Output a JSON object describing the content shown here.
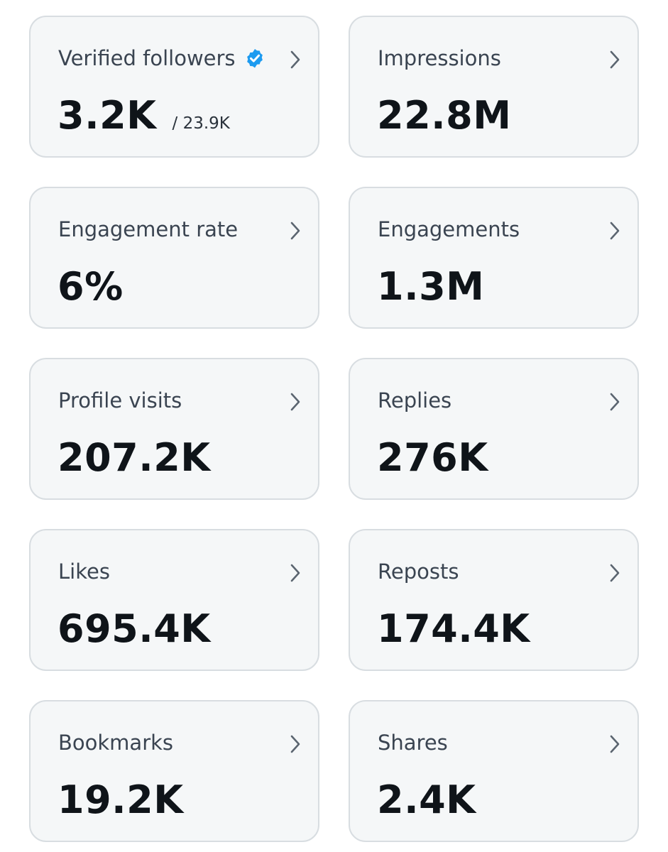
{
  "colors": {
    "card_background": "#f5f7f8",
    "card_border": "#d8dde1",
    "label": "#3a4451",
    "value": "#0f1419",
    "verified_badge": "#1d9bf0",
    "chevron": "#5b6570"
  },
  "metrics": [
    {
      "label": "Verified followers",
      "value": "3.2K",
      "total": "/ 23.9K",
      "icon": "verified-badge-icon"
    },
    {
      "label": "Impressions",
      "value": "22.8M"
    },
    {
      "label": "Engagement rate",
      "value": "6%"
    },
    {
      "label": "Engagements",
      "value": "1.3M"
    },
    {
      "label": "Profile visits",
      "value": "207.2K"
    },
    {
      "label": "Replies",
      "value": "276K"
    },
    {
      "label": "Likes",
      "value": "695.4K"
    },
    {
      "label": "Reposts",
      "value": "174.4K"
    },
    {
      "label": "Bookmarks",
      "value": "19.2K"
    },
    {
      "label": "Shares",
      "value": "2.4K"
    }
  ]
}
